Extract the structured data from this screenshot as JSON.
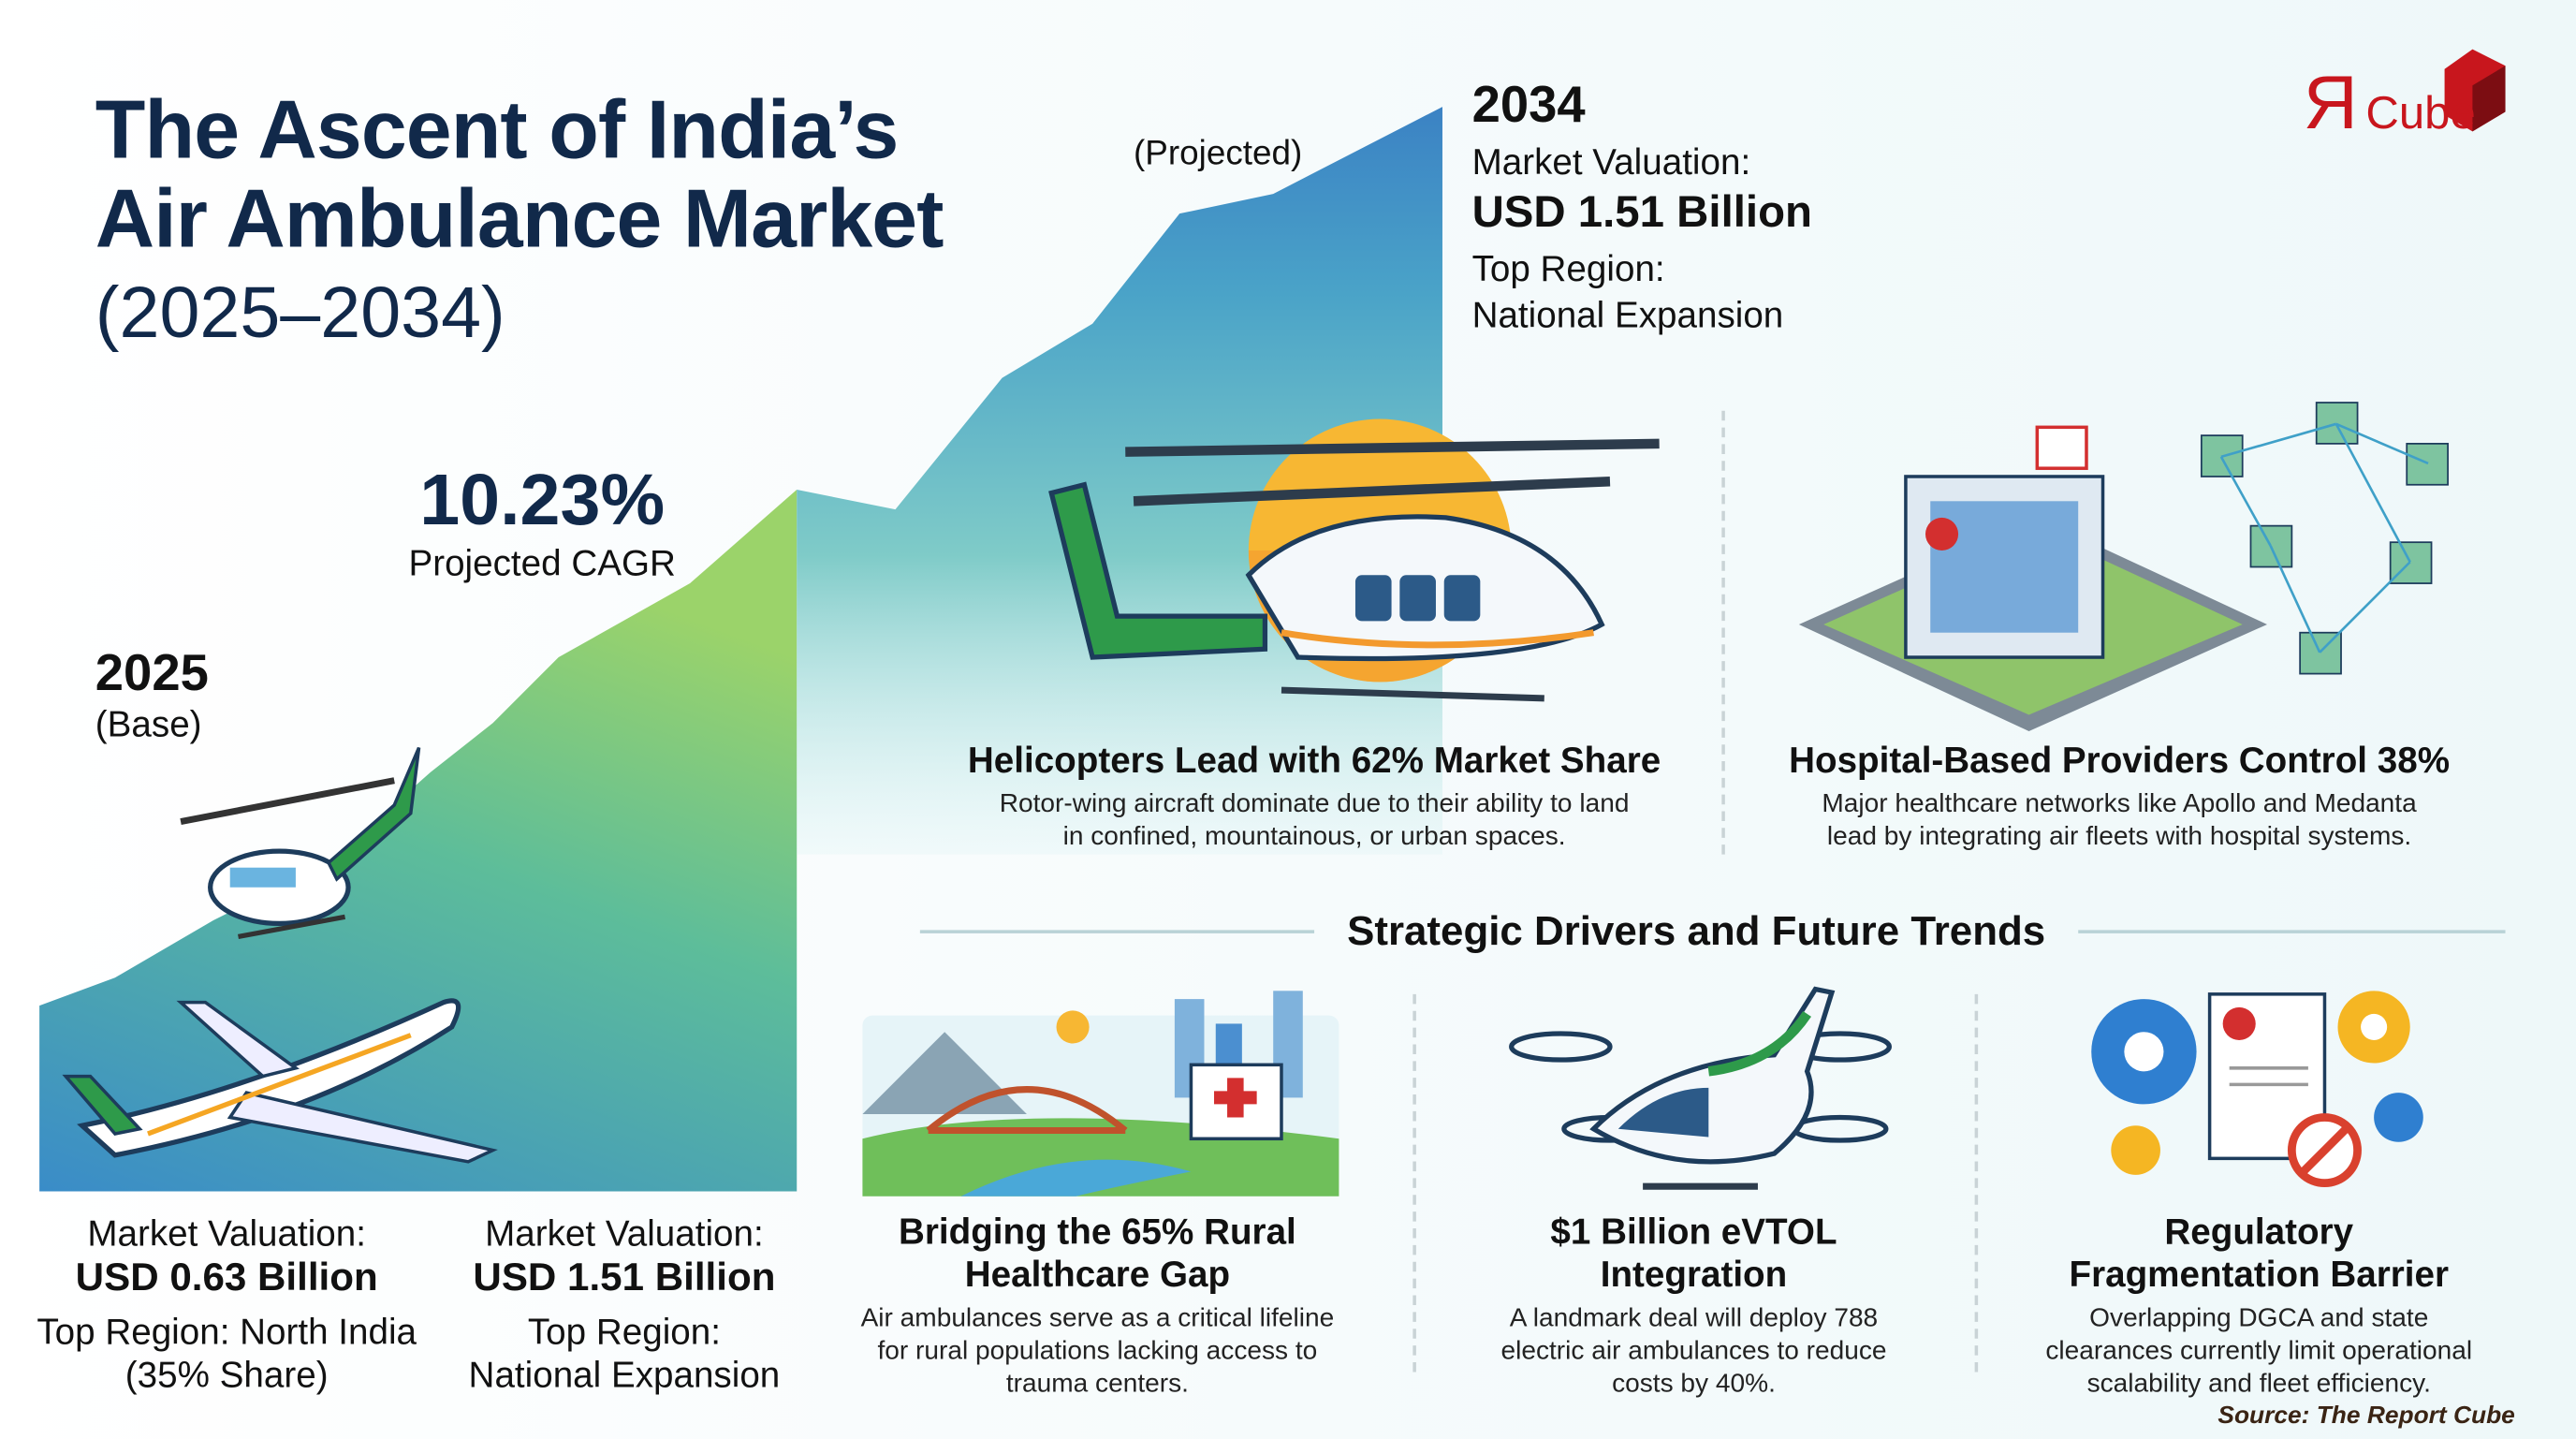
{
  "header": {
    "title_line1": "The Ascent of India’s",
    "title_line2": "Air Ambulance Market",
    "period": "(2025–2034)"
  },
  "logo": {
    "text": "ЯCube",
    "color": "#c8161d"
  },
  "projected_label": "(Projected)",
  "year_2034": {
    "year": "2034",
    "valuation_label": "Market Valuation:",
    "valuation": "USD 1.51 Billion",
    "region_label": "Top Region:",
    "region": "National Expansion"
  },
  "cagr": {
    "value": "10.23%",
    "label": "Projected CAGR"
  },
  "year_2025": {
    "year": "2025",
    "label": "(Base)"
  },
  "bottom_left": [
    {
      "valuation_label": "Market Valuation:",
      "valuation": "USD 0.63 Billion",
      "region_line1": "Top Region: North India",
      "region_line2": "(35% Share)"
    },
    {
      "valuation_label": "Market Valuation:",
      "valuation": "USD 1.51 Billion",
      "region_line1": "Top Region:",
      "region_line2": "National Expansion"
    }
  ],
  "highlights": [
    {
      "title": "Helicopters Lead with 62% Market Share",
      "desc1": "Rotor-wing aircraft dominate due to their ability to land",
      "desc2": "in confined, mountainous, or urban spaces.",
      "icon": "helicopter-icon"
    },
    {
      "title": "Hospital-Based Providers Control 38%",
      "desc1": "Major healthcare networks like Apollo and Medanta",
      "desc2": "lead by integrating air fleets with hospital systems.",
      "icon": "hospital-network-icon"
    }
  ],
  "section_title": "Strategic Drivers and Future Trends",
  "drivers": [
    {
      "title1": "Bridging the 65% Rural",
      "title2": "Healthcare Gap",
      "desc": [
        "Air ambulances serve as a critical lifeline",
        "for rural populations lacking access to",
        "trauma centers."
      ],
      "icon": "rural-bridge-icon"
    },
    {
      "title1": "$1 Billion eVTOL",
      "title2": "Integration",
      "desc": [
        "A landmark deal will deploy 788",
        "electric air ambulances to reduce",
        "costs by 40%."
      ],
      "icon": "evtol-icon"
    },
    {
      "title1": "Regulatory",
      "title2": "Fragmentation Barrier",
      "desc": [
        "Overlapping DGCA and state",
        "clearances currently limit operational",
        "scalability and fleet efficiency."
      ],
      "icon": "regulation-gears-icon"
    }
  ],
  "source": "Source: The Report Cube",
  "colors": {
    "navy": "#11294a",
    "green": "#7cc56a",
    "blue": "#3f86c6",
    "teal": "#5fb8c4",
    "sun": "#f5a623",
    "red": "#c8161d"
  }
}
